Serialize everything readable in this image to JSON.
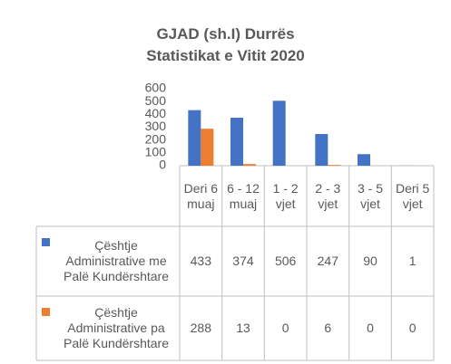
{
  "chart_data": {
    "type": "bar",
    "title": "GJAD (sh.I) Durrës",
    "subtitle": "Statistikat e Vitit 2020",
    "categories": [
      "Deri 6 muaj",
      "6 - 12 muaj",
      "1 - 2 vjet",
      "2 - 3 vjet",
      "3 - 5 vjet",
      "Deri 5 vjet"
    ],
    "series": [
      {
        "name": "Çështje Administrative me Palë Kundërshtare",
        "color": "#4472c4",
        "values": [
          433,
          374,
          506,
          247,
          90,
          1
        ]
      },
      {
        "name": "Çështje Administrative pa Palë Kundërshtare",
        "color": "#ed7d31",
        "values": [
          288,
          13,
          0,
          6,
          0,
          0
        ]
      }
    ],
    "ylim": [
      0,
      600
    ],
    "yticks": [
      0,
      100,
      200,
      300,
      400,
      500,
      600
    ],
    "grid": false
  }
}
